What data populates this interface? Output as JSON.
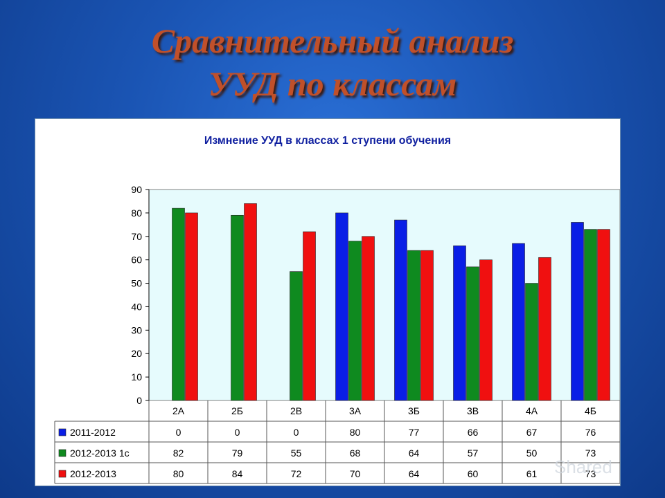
{
  "slide": {
    "title_line1": "Сравнительный анализ",
    "title_line2": "УУД по классам"
  },
  "chart_data": {
    "type": "bar",
    "title": "Измнение УУД в классах 1 ступени обучения",
    "categories": [
      "2А",
      "2Б",
      "2В",
      "3А",
      "3Б",
      "3В",
      "4А",
      "4Б"
    ],
    "series": [
      {
        "name": "2011-2012",
        "color": "#0a1ee6",
        "values": [
          0,
          0,
          0,
          80,
          77,
          66,
          67,
          76
        ]
      },
      {
        "name": "2012-2013 1с",
        "color": "#0f8a1f",
        "values": [
          82,
          79,
          55,
          68,
          64,
          57,
          50,
          73
        ]
      },
      {
        "name": "2012-2013",
        "color": "#f01010",
        "values": [
          80,
          84,
          72,
          70,
          64,
          60,
          61,
          73
        ]
      }
    ],
    "y_ticks": [
      "0",
      "10",
      "20",
      "30",
      "40",
      "50",
      "60",
      "70",
      "80",
      "90"
    ],
    "ylim": [
      0,
      90
    ],
    "grid": false,
    "legend": "data-table",
    "plot_background": "#e6fbfd"
  },
  "watermark": {
    "text": "Shared"
  }
}
